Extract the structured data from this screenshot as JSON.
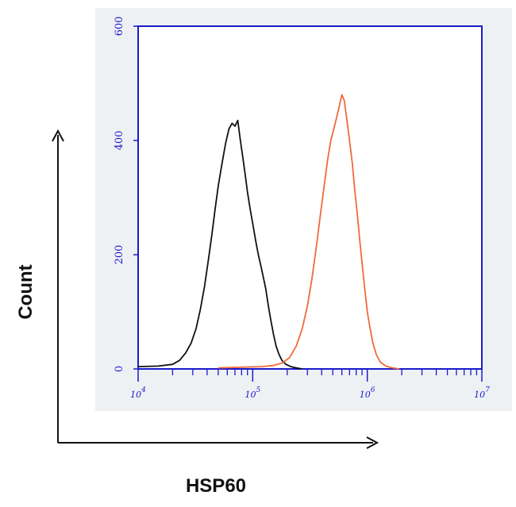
{
  "colors": {
    "axis": "#1a1acc",
    "panel": "#eef1f3",
    "series_control": "#111111",
    "series_hsp60": "#f06a3c",
    "arrow": "#111111"
  },
  "chart_data": {
    "type": "area",
    "title": "",
    "xlabel": "HSP60",
    "ylabel": "Count",
    "x_scale": "log",
    "xlim": [
      10000,
      10000000
    ],
    "ylim": [
      0,
      600
    ],
    "yticks": [
      0,
      200,
      400,
      600
    ],
    "xticks": [
      {
        "base": "10",
        "exp": "4",
        "value": 10000
      },
      {
        "base": "10",
        "exp": "5",
        "value": 100000
      },
      {
        "base": "10",
        "exp": "6",
        "value": 1000000
      },
      {
        "base": "10",
        "exp": "7",
        "value": 10000000
      }
    ],
    "grid": false,
    "legend": "none",
    "series": [
      {
        "color": "#111111",
        "x": [
          10000,
          15000,
          20000,
          23000,
          26000,
          29000,
          32000,
          35000,
          38000,
          41000,
          44000,
          47000,
          50000,
          54000,
          58000,
          62000,
          66000,
          70000,
          74000,
          78000,
          82000,
          86000,
          90000,
          95000,
          100000,
          106000,
          112000,
          118000,
          124000,
          130000,
          137000,
          144000,
          152000,
          160000,
          170000,
          180000,
          195000,
          215000,
          240000,
          270000
        ],
        "y": [
          4,
          5,
          8,
          15,
          28,
          45,
          70,
          105,
          145,
          190,
          235,
          280,
          320,
          360,
          395,
          420,
          430,
          425,
          435,
          400,
          370,
          340,
          310,
          280,
          255,
          225,
          200,
          180,
          160,
          140,
          110,
          85,
          60,
          40,
          25,
          15,
          8,
          4,
          2,
          0
        ]
      },
      {
        "color": "#f06a3c",
        "x": [
          50000,
          80000,
          120000,
          150000,
          180000,
          210000,
          240000,
          270000,
          300000,
          330000,
          360000,
          390000,
          420000,
          450000,
          480000,
          510000,
          540000,
          570000,
          600000,
          630000,
          660000,
          700000,
          740000,
          780000,
          820000,
          860000,
          900000,
          950000,
          1000000,
          1060000,
          1120000,
          1200000,
          1300000,
          1450000,
          1650000,
          1900000
        ],
        "y": [
          2,
          3,
          4,
          6,
          10,
          20,
          40,
          70,
          110,
          160,
          215,
          270,
          320,
          365,
          400,
          420,
          440,
          460,
          480,
          470,
          440,
          400,
          360,
          310,
          270,
          225,
          185,
          140,
          100,
          70,
          45,
          25,
          12,
          5,
          2,
          0
        ]
      }
    ]
  }
}
